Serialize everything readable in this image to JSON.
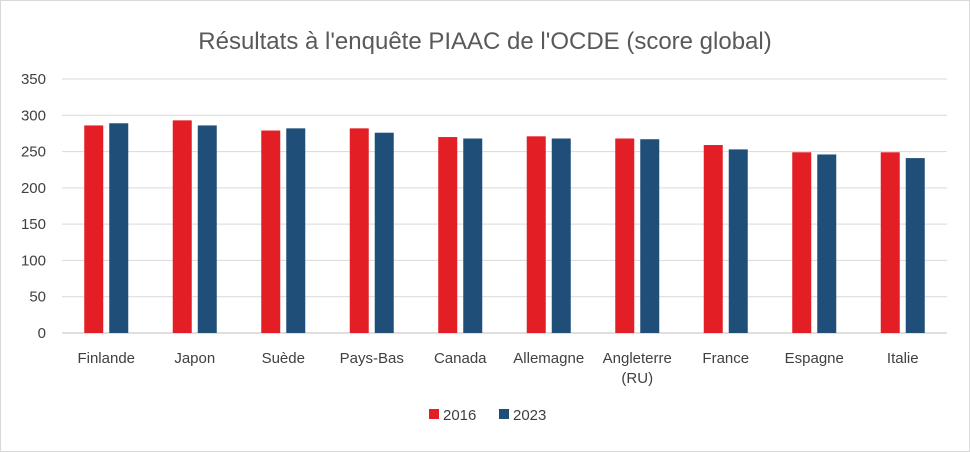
{
  "chart_data": {
    "type": "bar",
    "title": "Résultats à l'enquête PIAAC de l'OCDE (score global)",
    "xlabel": "",
    "ylabel": "",
    "ylim": [
      0,
      350
    ],
    "yticks": [
      0,
      50,
      100,
      150,
      200,
      250,
      300,
      350
    ],
    "grid": true,
    "legend_position": "bottom",
    "categories": [
      [
        "Finlande"
      ],
      [
        "Japon"
      ],
      [
        "Suède"
      ],
      [
        "Pays-Bas"
      ],
      [
        "Canada"
      ],
      [
        "Allemagne"
      ],
      [
        "Angleterre",
        "(RU)"
      ],
      [
        "France"
      ],
      [
        "Espagne"
      ],
      [
        "Italie"
      ]
    ],
    "series": [
      {
        "name": "2016",
        "color": "#e31e24",
        "values": [
          286,
          293,
          279,
          282,
          270,
          271,
          268,
          259,
          249,
          249
        ]
      },
      {
        "name": "2023",
        "color": "#1f4e79",
        "values": [
          289,
          286,
          282,
          276,
          268,
          268,
          267,
          253,
          246,
          241
        ]
      }
    ]
  }
}
